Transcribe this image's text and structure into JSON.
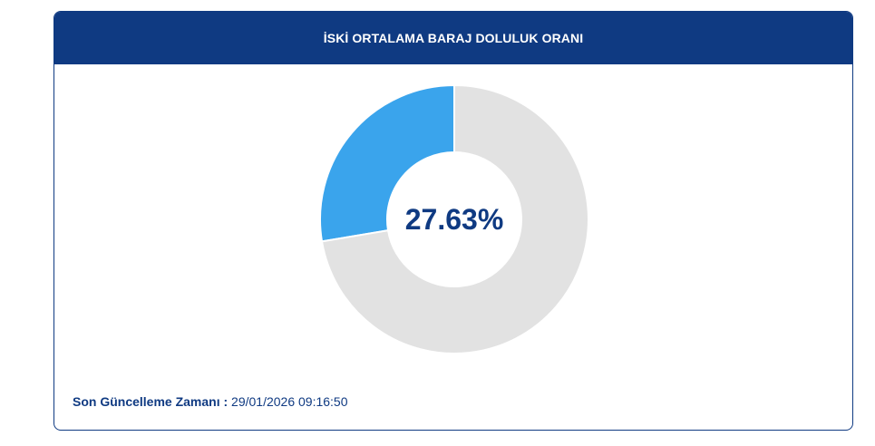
{
  "card": {
    "title": "İSKİ ORTALAMA BARAJ DOLULUK ORANI"
  },
  "chart_data": {
    "type": "pie",
    "donut": true,
    "center_label": "27.63%",
    "slices": [
      {
        "value": 27.63,
        "color": "#3aa4ec"
      },
      {
        "value": 72.37,
        "color": "#e2e2e2"
      }
    ]
  },
  "footer": {
    "label": "Son Güncelleme Zamanı :",
    "value": "29/01/2026 09:16:50"
  }
}
